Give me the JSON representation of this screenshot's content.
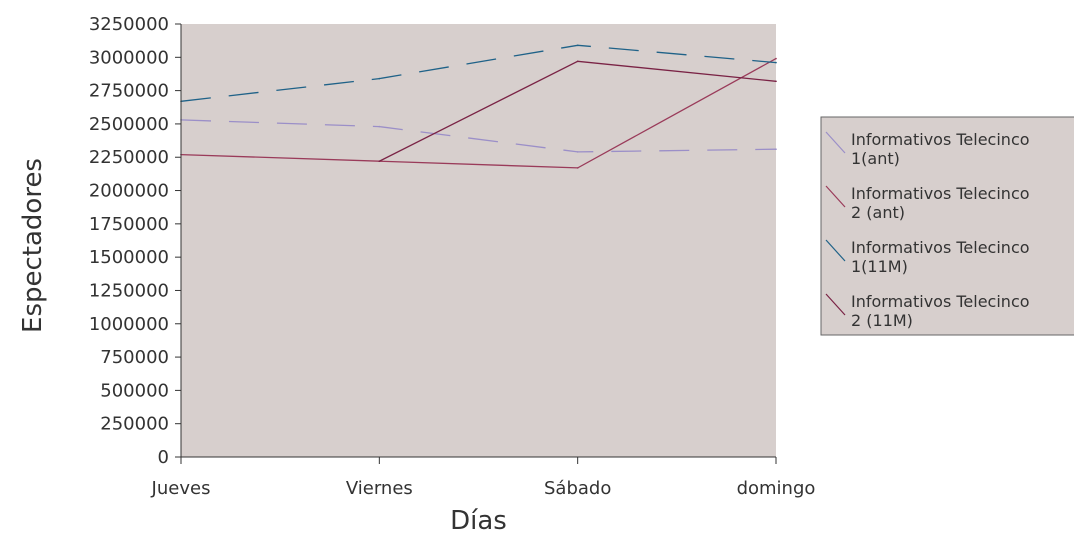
{
  "chart_data": {
    "type": "line",
    "title": "",
    "xlabel": "Días",
    "ylabel": "Espectadores",
    "categories": [
      "Jueves",
      "Viernes",
      "Sábado",
      "domingo"
    ],
    "ylim": [
      0,
      3250000
    ],
    "yticks": [
      0,
      250000,
      500000,
      750000,
      1000000,
      1250000,
      1500000,
      1750000,
      2000000,
      2250000,
      2500000,
      2750000,
      3000000,
      3250000
    ],
    "grid": false,
    "legend_position": "right",
    "plot_background": "#d7cfcd",
    "series": [
      {
        "name": "Informativos Telecinco 1(ant)",
        "legend_lines": [
          "Informativos Telecinco",
          "1(ant)"
        ],
        "values": [
          2530000,
          2480000,
          2290000,
          2310000
        ],
        "color": "#9b8fc8",
        "dashed": true
      },
      {
        "name": "Informativos Telecinco 2 (ant)",
        "legend_lines": [
          "Informativos Telecinco",
          "2 (ant)"
        ],
        "values": [
          2270000,
          2220000,
          2170000,
          2990000
        ],
        "color": "#9a3b5a",
        "dashed": false
      },
      {
        "name": "Informativos Telecinco 1(11M)",
        "legend_lines": [
          "Informativos Telecinco",
          "1(11M)"
        ],
        "values": [
          2670000,
          2840000,
          3090000,
          2960000
        ],
        "color": "#1f6288",
        "dashed": true
      },
      {
        "name": "Informativos Telecinco 2 (11M)",
        "legend_lines": [
          "Informativos Telecinco",
          "2 (11M)"
        ],
        "values": [
          null,
          2220000,
          2970000,
          2820000
        ],
        "color": "#7a2345",
        "dashed": false
      }
    ]
  }
}
